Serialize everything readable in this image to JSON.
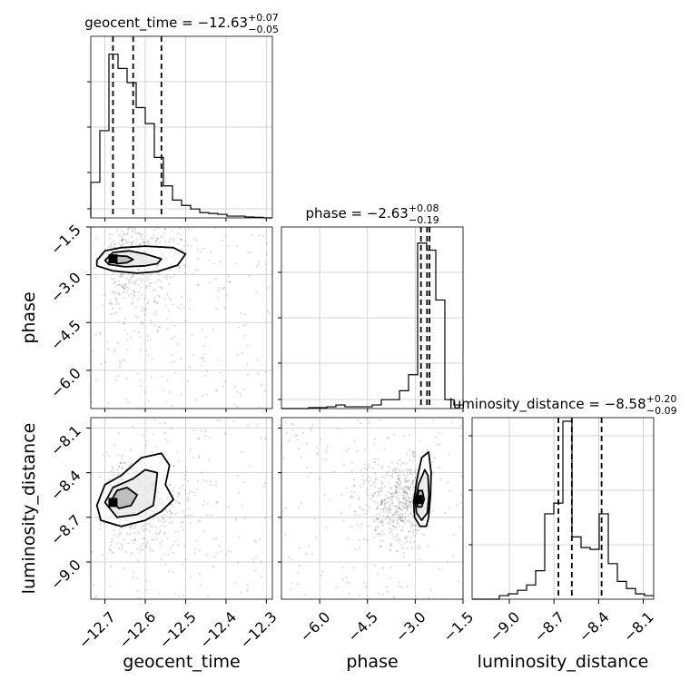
{
  "chart_data": {
    "type": "corner",
    "parameters": [
      "geocent_time",
      "phase",
      "luminosity_distance"
    ],
    "xlabels": [
      "geocent_time",
      "phase",
      "luminosity_distance"
    ],
    "ylabels": [
      "phase",
      "luminosity_distance"
    ],
    "grid": true,
    "titles": [
      {
        "parameter": "geocent_time",
        "text": "geocent_time = −12.63",
        "plus": "+0.07",
        "minus": "−0.05"
      },
      {
        "parameter": "phase",
        "text": "phase = −2.63",
        "plus": "+0.08",
        "minus": "−0.19"
      },
      {
        "parameter": "luminosity_distance",
        "text": "luminosity_distance = −8.58",
        "plus": "+0.20",
        "minus": "−0.09"
      }
    ],
    "ranges": {
      "geocent_time": [
        -12.735,
        -12.285
      ],
      "phase": [
        -7.2,
        -1.5
      ],
      "luminosity_distance": [
        -9.25,
        -8.03
      ]
    },
    "ticks": {
      "geocent_time": [
        -12.7,
        -12.6,
        -12.5,
        -12.4,
        -12.3
      ],
      "phase": [
        -6.0,
        -4.5,
        -3.0,
        -1.5
      ],
      "luminosity_distance": [
        -9.0,
        -8.7,
        -8.4,
        -8.1
      ]
    },
    "tick_labels": {
      "geocent_time": [
        "−12.7",
        "−12.6",
        "−12.5",
        "−12.4",
        "−12.3"
      ],
      "phase": [
        "−6.0",
        "−4.5",
        "−3.0",
        "−1.5"
      ],
      "luminosity_distance": [
        "−9.0",
        "−8.7",
        "−8.4",
        "−8.1"
      ]
    },
    "quantiles": {
      "geocent_time": [
        -12.68,
        -12.63,
        -12.56
      ],
      "phase": [
        -2.82,
        -2.63,
        -2.55
      ],
      "luminosity_distance": [
        -8.67,
        -8.58,
        -8.38
      ]
    },
    "histograms": {
      "geocent_time": {
        "edges": [
          -12.735,
          -12.7125,
          -12.69,
          -12.6675,
          -12.645,
          -12.6225,
          -12.6,
          -12.5775,
          -12.555,
          -12.5325,
          -12.51,
          -12.4875,
          -12.465,
          -12.4425,
          -12.42,
          -12.3975,
          -12.375,
          -12.3525,
          -12.33,
          -12.3075,
          -12.285
        ],
        "counts": [
          0.2,
          0.49,
          0.92,
          0.84,
          0.76,
          0.62,
          0.53,
          0.34,
          0.18,
          0.1,
          0.07,
          0.05,
          0.03,
          0.025,
          0.02,
          0.01,
          0.01,
          0.005,
          0.003,
          0
        ]
      },
      "phase": {
        "edges": [
          -7.2,
          -6.915,
          -6.63,
          -6.345,
          -6.06,
          -5.775,
          -5.49,
          -5.205,
          -4.92,
          -4.635,
          -4.35,
          -4.065,
          -3.78,
          -3.495,
          -3.21,
          -2.925,
          -2.64,
          -2.355,
          -2.07,
          -1.785,
          -1.5
        ],
        "counts": [
          0,
          0,
          0,
          0.005,
          0.005,
          0.01,
          0.02,
          0.01,
          0.01,
          0.01,
          0.02,
          0.05,
          0.05,
          0.1,
          0.19,
          0.93,
          0.89,
          0.61,
          0.05,
          0.02
        ]
      },
      "luminosity_distance": {
        "edges": [
          -9.25,
          -9.189,
          -9.128,
          -9.067,
          -9.006,
          -8.945,
          -8.884,
          -8.823,
          -8.762,
          -8.701,
          -8.64,
          -8.579,
          -8.518,
          -8.457,
          -8.396,
          -8.335,
          -8.274,
          -8.213,
          -8.152,
          -8.091,
          -8.03
        ],
        "counts": [
          0,
          0,
          0,
          0.02,
          0.03,
          0.05,
          0.08,
          0.16,
          0.48,
          0.54,
          1.0,
          0.35,
          0.29,
          0.28,
          0.48,
          0.2,
          0.1,
          0.06,
          0.03,
          0.02
        ]
      }
    },
    "hist_yticks": {
      "geocent_time": [
        0.05,
        0.25,
        0.5,
        0.75
      ],
      "phase": [
        0.05,
        0.25,
        0.5,
        0.75
      ],
      "luminosity_distance": [
        0.3,
        0.6,
        0.9
      ]
    },
    "pairs": [
      {
        "x": "geocent_time",
        "y": "phase",
        "mode": [
          -12.68,
          -2.5
        ],
        "contours": [
          [
            [
              -12.72,
              -2.55
            ],
            [
              -12.7,
              -2.25
            ],
            [
              -12.66,
              -2.15
            ],
            [
              -12.6,
              -2.1
            ],
            [
              -12.53,
              -2.15
            ],
            [
              -12.5,
              -2.35
            ],
            [
              -12.52,
              -2.7
            ],
            [
              -12.57,
              -2.9
            ],
            [
              -12.62,
              -2.95
            ],
            [
              -12.68,
              -2.88
            ],
            [
              -12.72,
              -2.72
            ]
          ],
          [
            [
              -12.7,
              -2.55
            ],
            [
              -12.68,
              -2.3
            ],
            [
              -12.64,
              -2.25
            ],
            [
              -12.6,
              -2.35
            ],
            [
              -12.56,
              -2.5
            ],
            [
              -12.57,
              -2.65
            ],
            [
              -12.6,
              -2.72
            ],
            [
              -12.65,
              -2.75
            ],
            [
              -12.69,
              -2.68
            ]
          ],
          [
            [
              -12.685,
              -2.55
            ],
            [
              -12.67,
              -2.4
            ],
            [
              -12.645,
              -2.42
            ],
            [
              -12.63,
              -2.52
            ],
            [
              -12.645,
              -2.62
            ],
            [
              -12.67,
              -2.65
            ]
          ]
        ]
      },
      {
        "x": "geocent_time",
        "y": "luminosity_distance",
        "mode": [
          -12.68,
          -8.6
        ],
        "contours": [
          [
            [
              -12.72,
              -8.62
            ],
            [
              -12.7,
              -8.48
            ],
            [
              -12.66,
              -8.42
            ],
            [
              -12.61,
              -8.3
            ],
            [
              -12.56,
              -8.27
            ],
            [
              -12.54,
              -8.35
            ],
            [
              -12.55,
              -8.48
            ],
            [
              -12.53,
              -8.58
            ],
            [
              -12.56,
              -8.66
            ],
            [
              -12.6,
              -8.72
            ],
            [
              -12.66,
              -8.76
            ],
            [
              -12.71,
              -8.72
            ]
          ],
          [
            [
              -12.7,
              -8.6
            ],
            [
              -12.68,
              -8.5
            ],
            [
              -12.63,
              -8.44
            ],
            [
              -12.6,
              -8.38
            ],
            [
              -12.57,
              -8.4
            ],
            [
              -12.575,
              -8.52
            ],
            [
              -12.58,
              -8.62
            ],
            [
              -12.62,
              -8.68
            ],
            [
              -12.67,
              -8.7
            ]
          ],
          [
            [
              -12.685,
              -8.59
            ],
            [
              -12.67,
              -8.52
            ],
            [
              -12.645,
              -8.5
            ],
            [
              -12.62,
              -8.55
            ],
            [
              -12.635,
              -8.62
            ],
            [
              -12.665,
              -8.64
            ]
          ]
        ]
      },
      {
        "x": "phase",
        "y": "luminosity_distance",
        "mode": [
          -2.9,
          -8.58
        ],
        "contours": [
          [
            [
              -3.05,
              -8.6
            ],
            [
              -2.95,
              -8.45
            ],
            [
              -2.8,
              -8.3
            ],
            [
              -2.58,
              -8.26
            ],
            [
              -2.5,
              -8.4
            ],
            [
              -2.52,
              -8.55
            ],
            [
              -2.58,
              -8.7
            ],
            [
              -2.65,
              -8.76
            ],
            [
              -2.85,
              -8.76
            ],
            [
              -3.02,
              -8.7
            ]
          ],
          [
            [
              -3.0,
              -8.6
            ],
            [
              -2.9,
              -8.48
            ],
            [
              -2.7,
              -8.38
            ],
            [
              -2.6,
              -8.42
            ],
            [
              -2.57,
              -8.55
            ],
            [
              -2.62,
              -8.67
            ],
            [
              -2.8,
              -8.72
            ],
            [
              -2.96,
              -8.67
            ]
          ],
          [
            [
              -2.97,
              -8.58
            ],
            [
              -2.88,
              -8.52
            ],
            [
              -2.78,
              -8.52
            ],
            [
              -2.72,
              -8.58
            ],
            [
              -2.8,
              -8.63
            ],
            [
              -2.92,
              -8.63
            ]
          ]
        ]
      }
    ]
  }
}
